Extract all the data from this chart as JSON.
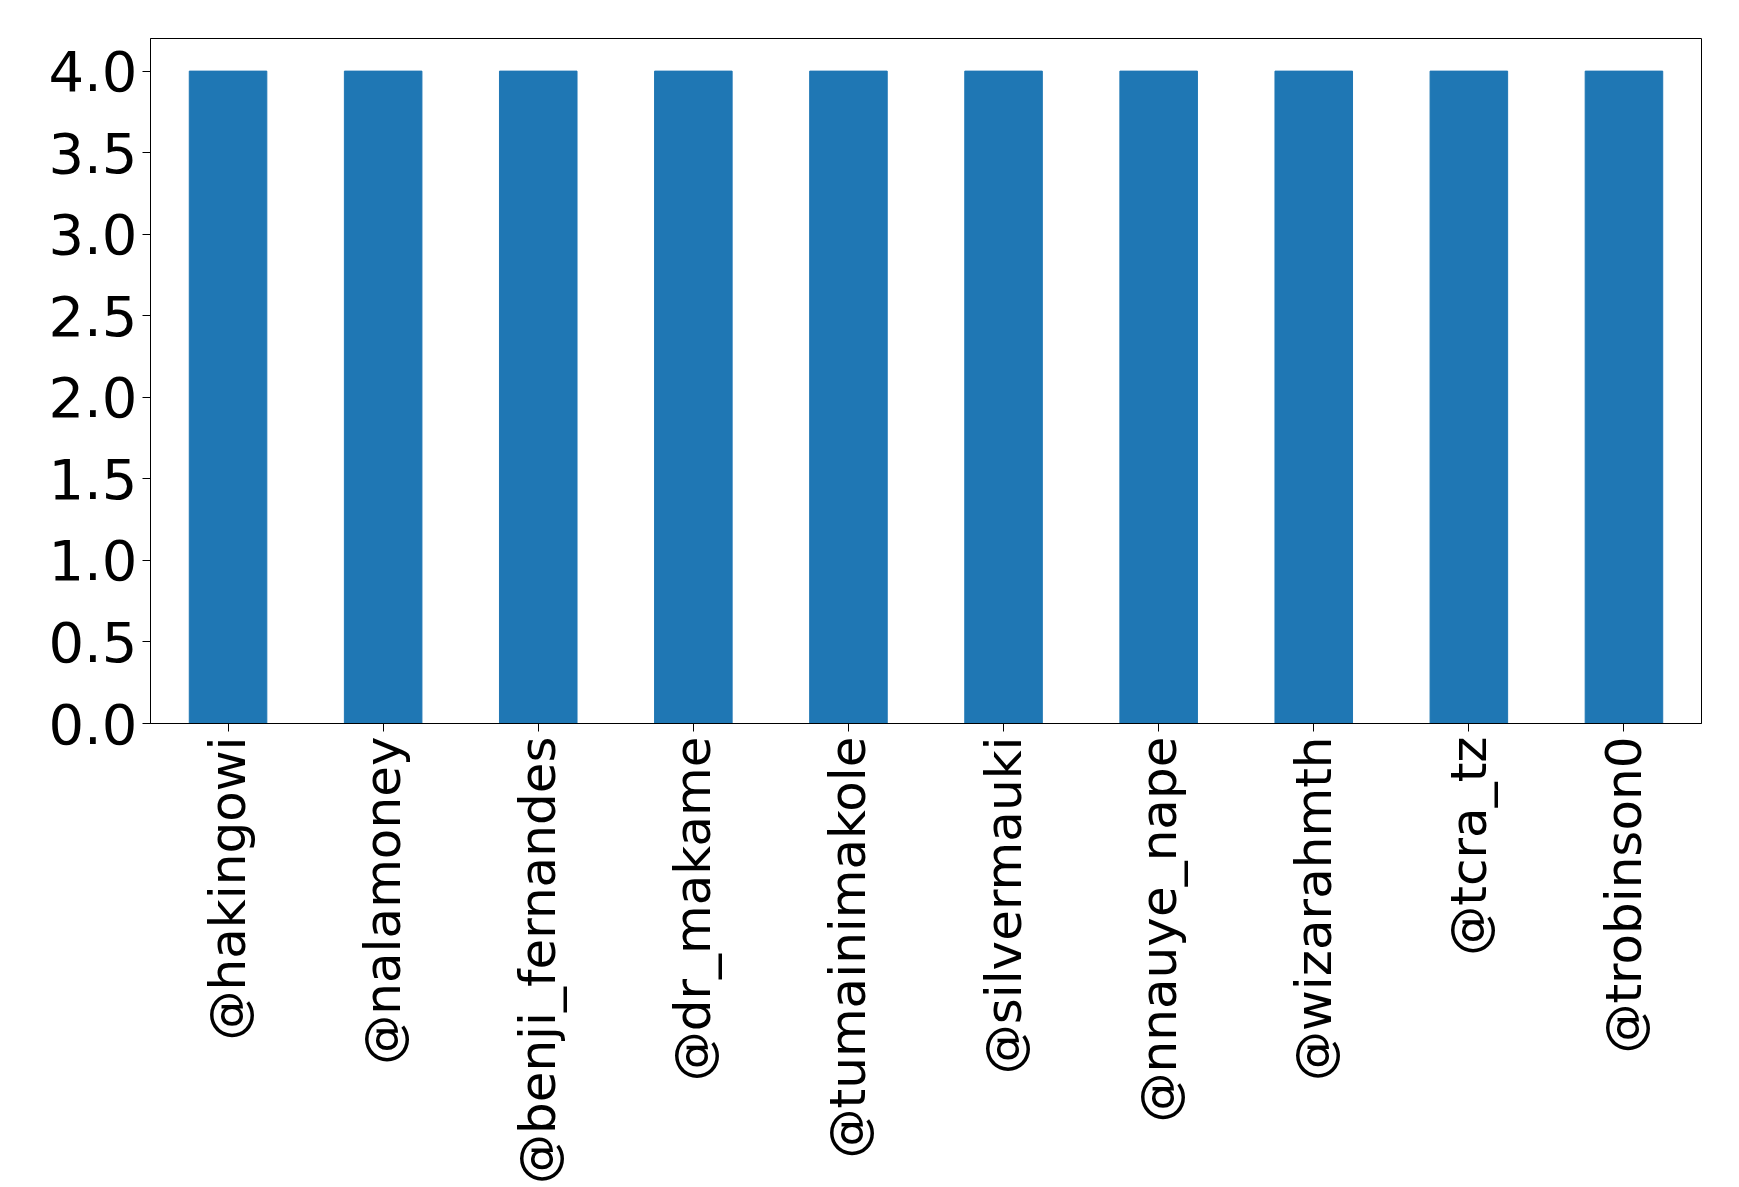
{
  "chart_data": {
    "type": "bar",
    "categories": [
      "@hakingowi",
      "@nalamoney",
      "@benji_fernandes",
      "@dr_makame",
      "@tumainimakole",
      "@silvermauki",
      "@nnauye_nape",
      "@wizarahmth",
      "@tcra_tz",
      "@trobinson0"
    ],
    "values": [
      4.0,
      4.0,
      4.0,
      4.0,
      4.0,
      4.0,
      4.0,
      4.0,
      4.0,
      4.0
    ],
    "color": "#1f77b4",
    "ylim": [
      0,
      4.2
    ],
    "yticks": [
      {
        "value": 0,
        "label": "0.0"
      },
      {
        "value": 0.5,
        "label": "0.5"
      },
      {
        "value": 1,
        "label": "1.0"
      },
      {
        "value": 1.5,
        "label": "1.5"
      },
      {
        "value": 2,
        "label": "2.0"
      },
      {
        "value": 2.5,
        "label": "2.5"
      },
      {
        "value": 3,
        "label": "3.0"
      },
      {
        "value": 3.5,
        "label": "3.5"
      },
      {
        "value": 4,
        "label": "4.0"
      }
    ],
    "grid": false
  }
}
